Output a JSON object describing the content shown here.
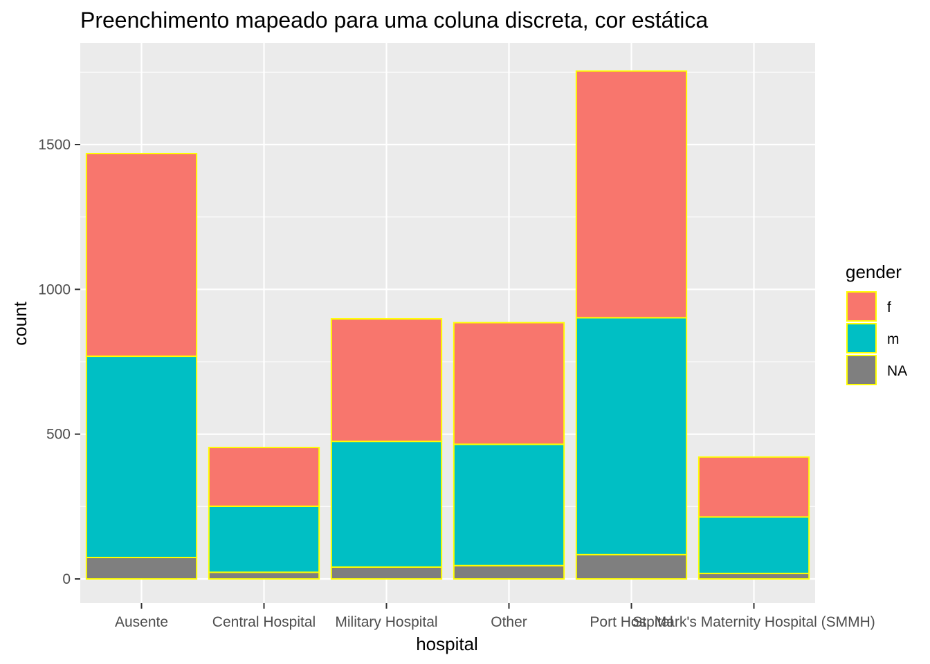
{
  "chart_data": {
    "type": "bar",
    "stacked": true,
    "title": "Preenchimento mapeado para uma coluna discreta, cor estática",
    "xlabel": "hospital",
    "ylabel": "count",
    "categories": [
      "Ausente",
      "Central Hospital",
      "Military Hospital",
      "Other",
      "Port Hospital",
      "St. Mark's Maternity Hospital (SMMH)"
    ],
    "series": [
      {
        "name": "f",
        "values": [
          700,
          203,
          423,
          420,
          852,
          207
        ]
      },
      {
        "name": "m",
        "values": [
          695,
          228,
          434,
          419,
          818,
          195
        ]
      },
      {
        "name": "NA",
        "values": [
          74,
          23,
          41,
          46,
          84,
          19
        ]
      }
    ],
    "ylim": [
      -80,
      1840
    ],
    "yticks": [
      0,
      500,
      1000,
      1500
    ],
    "legend": {
      "title": "gender",
      "position": "right"
    },
    "colors": {
      "f": "#F8766D",
      "m": "#00BFC4",
      "NA": "#7F7F7F"
    },
    "bar_outline_color": "#FFFF00",
    "panel_background": "#EBEBEB",
    "grid_color": "#FFFFFF",
    "grid": true
  }
}
